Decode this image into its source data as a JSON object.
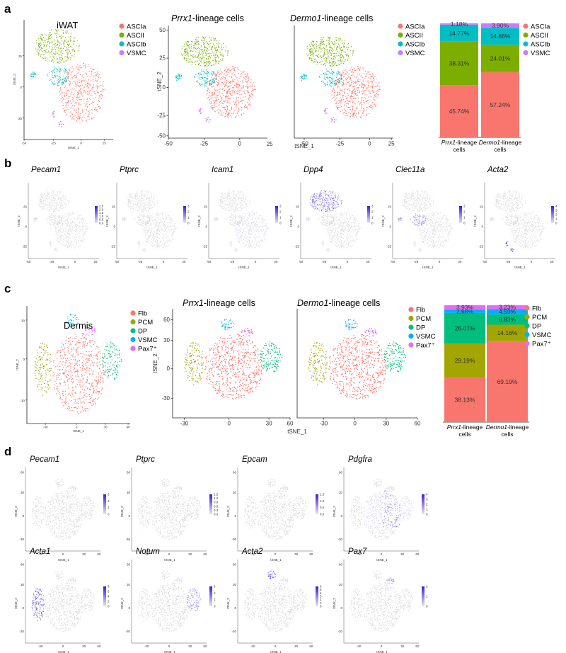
{
  "panels": {
    "a": "a",
    "b": "b",
    "c": "c",
    "d": "d"
  },
  "axis": {
    "x": "tSNE_1",
    "y": "tSNE_2"
  },
  "a": {
    "titles": {
      "iwat": "iWAT",
      "prrx1_gene": "Prrx1",
      "prrx1_rest": "-lineage cells",
      "dermo1_gene": "Dermo1",
      "dermo1_rest": "-lineage cells"
    },
    "legend": [
      "ASCIa",
      "ASCII",
      "ASCIb",
      "VSMC"
    ],
    "colors": {
      "ASCIa": "#f8766d",
      "ASCII": "#7cae00",
      "ASCIb": "#00bfc4",
      "VSMC": "#c77cff"
    },
    "x_ticks": [
      "-50",
      "-25",
      "0",
      "25"
    ],
    "y_ticks": [
      "50",
      "25",
      "0",
      "-25",
      "-50"
    ],
    "mini_x_ticks": [
      "-50",
      "-25",
      "0",
      "25"
    ],
    "mini_y_ticks": [
      "25",
      "0",
      "-25"
    ]
  },
  "b": {
    "genes": [
      "Pecam1",
      "Ptprc",
      "Icam1",
      "Dpp4",
      "Clec11a",
      "Acta2"
    ],
    "colorbars": [
      [
        "2.5",
        "2.0",
        "1.5",
        "1.0",
        "0.5",
        "0.0"
      ],
      [
        "3",
        "2",
        "1",
        "0"
      ],
      [
        "3",
        "2",
        "1",
        "0"
      ],
      [
        "3",
        "2",
        "1",
        "0"
      ],
      [
        "3",
        "2",
        "1",
        "0"
      ],
      [
        "4",
        "3",
        "2",
        "1",
        "0"
      ]
    ],
    "x_ticks": [
      "-50",
      "-25",
      "0",
      "25"
    ],
    "y_ticks": [
      "25",
      "0",
      "-25"
    ]
  },
  "c": {
    "titles": {
      "dermis": "Dermis",
      "prrx1_gene": "Prrx1",
      "prrx1_rest": "-lineage cells",
      "dermo1_gene": "Dermo1",
      "dermo1_rest": "-lineage cells"
    },
    "legend": [
      "Flb",
      "PCM",
      "DP",
      "VSMC",
      "Pax7⁺"
    ],
    "colors": {
      "Flb": "#f8766d",
      "PCM": "#a3a500",
      "DP": "#00bf7d",
      "VSMC": "#00b0f6",
      "Pax7": "#e76bf3"
    },
    "x_ticks": [
      "-30",
      "0",
      "30",
      "60"
    ],
    "y_ticks": [
      "60",
      "30",
      "0",
      "-30"
    ],
    "mini_x_ticks": [
      "-30",
      "0",
      "30",
      "60"
    ],
    "mini_y_ticks": [
      "30",
      "0",
      "-30"
    ]
  },
  "d": {
    "genes_row1": [
      "Pecam1",
      "Ptprc",
      "Epcam",
      "Pdgfra"
    ],
    "genes_row2": [
      "Acta1",
      "Notum",
      "Acta2",
      "Pax7"
    ],
    "colorbars_row1": [
      [
        "3",
        "2",
        "1",
        "0"
      ],
      [
        "1.5",
        "1.2",
        "0.9",
        "0.6",
        "0.3",
        "0.0"
      ],
      [
        "1.5",
        "1.0",
        "0.5",
        "0.0"
      ],
      [
        "4",
        "3",
        "2",
        "1",
        "0"
      ]
    ],
    "colorbars_row2": [
      [
        "8",
        "6",
        "4",
        "2",
        "0"
      ],
      [
        "3",
        "2",
        "1",
        "0"
      ],
      [
        "6",
        "5",
        "4",
        "3",
        "2",
        "1",
        "0"
      ],
      [
        "2",
        "1",
        "0"
      ]
    ],
    "x_ticks": [
      "-30",
      "0",
      "30",
      "60"
    ],
    "y_ticks": [
      "60",
      "30",
      "0",
      "-30"
    ]
  },
  "chart_data": [
    {
      "type": "bar",
      "stacked": true,
      "categories": [
        "Prrx1-lineage cells",
        "Dermo1-lineage cells"
      ],
      "category_labels": [
        {
          "gene": "Prrx1",
          "rest1": "-lineage",
          "rest2": "cells"
        },
        {
          "gene": "Dermo1",
          "rest1": "-lineage",
          "rest2": "cells"
        }
      ],
      "series": [
        {
          "name": "ASCIa",
          "values": [
            45.74,
            57.24
          ],
          "labels": [
            "45.74%",
            "57.24%"
          ]
        },
        {
          "name": "ASCII",
          "values": [
            38.31,
            24.01
          ],
          "labels": [
            "38.31%",
            "24.01%"
          ]
        },
        {
          "name": "ASCIb",
          "values": [
            14.77,
            14.86
          ],
          "labels": [
            "14.77%",
            "14.86%"
          ]
        },
        {
          "name": "VSMC",
          "values": [
            1.18,
            3.9
          ],
          "labels": [
            "1.18%",
            "3.90%"
          ]
        }
      ],
      "ylim": [
        0,
        100
      ],
      "legend": "right"
    },
    {
      "type": "bar",
      "stacked": true,
      "categories": [
        "Prrx1-lineage cells",
        "Dermo1-lineage cells"
      ],
      "category_labels": [
        {
          "gene": "Prrx1",
          "rest1": "-lineage",
          "rest2": "cells"
        },
        {
          "gene": "Dermo1",
          "rest1": "-lineage",
          "rest2": "cells"
        }
      ],
      "series": [
        {
          "name": "Flb",
          "values": [
            38.13,
            69.19
          ],
          "labels": [
            "38.13%",
            "69.19%"
          ]
        },
        {
          "name": "PCM",
          "values": [
            29.19,
            14.16
          ],
          "labels": [
            "29.19%",
            "14.16%"
          ]
        },
        {
          "name": "DP",
          "values": [
            26.07,
            8.83
          ],
          "labels": [
            "26.07%",
            "8.83%"
          ]
        },
        {
          "name": "VSMC",
          "values": [
            2.68,
            4.59
          ],
          "labels": [
            "2.68%",
            "4.59%"
          ]
        },
        {
          "name": "Pax7⁺",
          "values": [
            3.93,
            3.23
          ],
          "labels": [
            "3.93%",
            "3.23%"
          ]
        }
      ],
      "ylim": [
        0,
        100
      ],
      "legend": "right"
    }
  ]
}
